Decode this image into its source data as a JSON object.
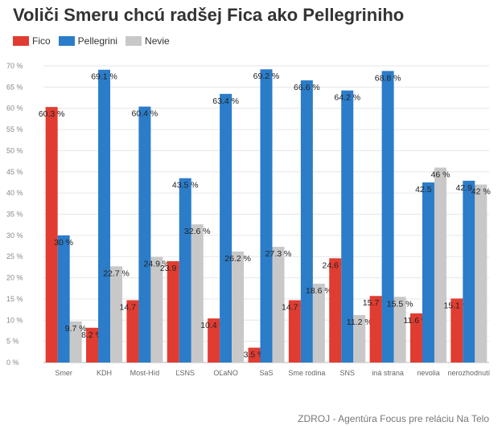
{
  "header": {
    "title": "Voliči Smeru chcú radšej Fica ako Pellegriniho"
  },
  "footer": {
    "source": "ZDROJ - Agentúra Focus pre reláciu Na Telo"
  },
  "colors": {
    "fico": "#e03c31",
    "pellegrini": "#2b7cc9",
    "nevie": "#c8c8c8"
  },
  "chart_data": {
    "type": "bar",
    "title": "Voliči Smeru chcú radšej Fica ako Pellegriniho",
    "categories": [
      "Smer",
      "KDH",
      "Most-Híd",
      "ĽSNS",
      "OĽaNO",
      "SaS",
      "Sme rodina",
      "SNS",
      "iná strana",
      "nevolia",
      "nerozhodnutí"
    ],
    "series": [
      {
        "name": "Fico",
        "values": [
          60.3,
          8.2,
          14.7,
          23.9,
          10.4,
          3.5,
          14.7,
          24.6,
          15.7,
          11.6,
          15.1
        ],
        "labels": [
          "60.3 %",
          "8.2 %",
          "14.7 %",
          "23.9 %",
          "10.4 %",
          "3.5 %",
          "14.7 %",
          "24.6 %",
          "15.7 %",
          "11.6 %",
          "15.1 %"
        ]
      },
      {
        "name": "Pellegrini",
        "values": [
          30,
          69.1,
          60.4,
          43.5,
          63.4,
          69.2,
          66.6,
          64.2,
          68.8,
          42.5,
          42.9
        ],
        "labels": [
          "30 %",
          "69.1 %",
          "60.4 %",
          "43.5 %",
          "63.4 %",
          "69.2 %",
          "66.6 %",
          "64.2 %",
          "68.8 %",
          "42.5 %",
          "42.9 %"
        ]
      },
      {
        "name": "Nevie",
        "values": [
          9.7,
          22.7,
          24.9,
          32.6,
          26.2,
          27.3,
          18.6,
          11.2,
          15.5,
          46,
          42
        ],
        "labels": [
          "9.7 %",
          "22.7 %",
          "24.9 %",
          "32.6 %",
          "26.2 %",
          "27.3 %",
          "18.6 %",
          "11.2 %",
          "15.5 %",
          "46 %",
          "42 %"
        ]
      }
    ],
    "ylim": [
      0,
      70
    ],
    "yticks": [
      0,
      5,
      10,
      15,
      20,
      25,
      30,
      35,
      40,
      45,
      50,
      55,
      60,
      65,
      70
    ],
    "ytick_labels": [
      "0 %",
      "5 %",
      "10 %",
      "15 %",
      "20 %",
      "25 %",
      "30 %",
      "35 %",
      "40 %",
      "45 %",
      "50 %",
      "55 %",
      "60 %",
      "65 %",
      "70 %"
    ],
    "legend": "top-left",
    "grid": true
  }
}
